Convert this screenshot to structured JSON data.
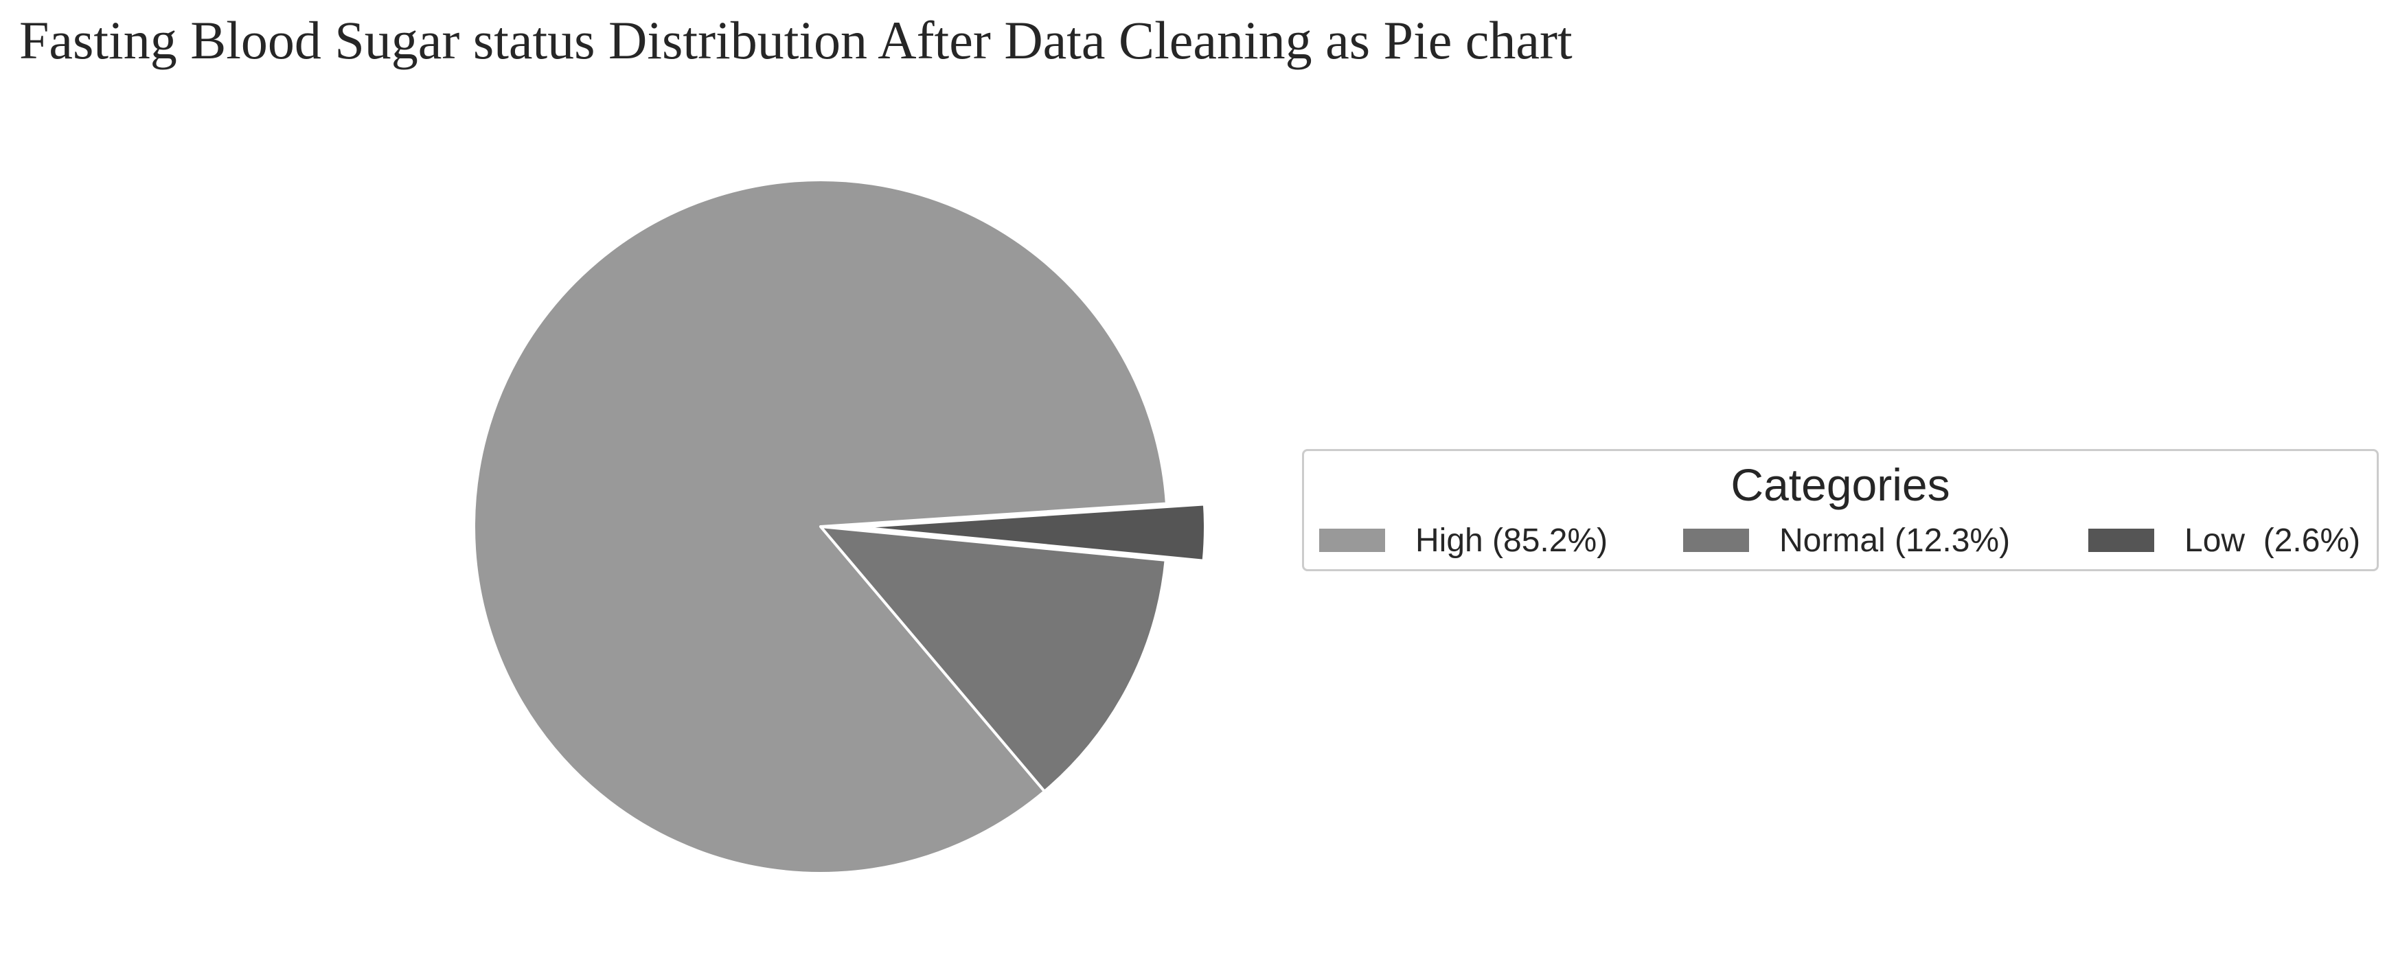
{
  "chart_data": {
    "type": "pie",
    "title": "Fasting Blood Sugar status Distribution After Data Cleaning as Pie chart",
    "categories": [
      "High",
      "Normal",
      "Low"
    ],
    "values": [
      85.2,
      12.3,
      2.6
    ],
    "colors": [
      "#999999",
      "#777777",
      "#555555"
    ],
    "exploded": [
      false,
      false,
      true
    ],
    "legend": {
      "title": "Categories",
      "placement": "center-right",
      "entries": [
        "High (85.2%)",
        "Normal (12.3%)",
        "Low  (2.6%)"
      ]
    }
  }
}
